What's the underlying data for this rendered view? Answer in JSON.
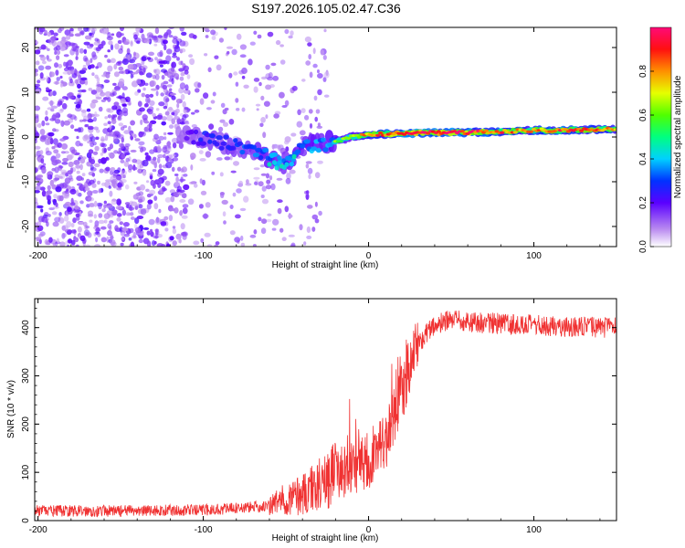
{
  "title": "S197.2026.105.02.47.C36",
  "chart_data": [
    {
      "type": "heatmap",
      "xlabel": "Height of straight line (km)",
      "ylabel": "Frequency (Hz)",
      "xlim": [
        -202,
        150
      ],
      "ylim": [
        -24.5,
        24.5
      ],
      "xticks": [
        -200,
        -100,
        0,
        100
      ],
      "xtick_labels": [
        "-200",
        "-100",
        "0",
        "100"
      ],
      "yticks": [
        -20,
        -10,
        0,
        10,
        20
      ],
      "ytick_labels": [
        "-20",
        "-10",
        "0",
        "10",
        "20"
      ],
      "colorbar": {
        "label": "Normalized spectral amplitude",
        "range": [
          0,
          1
        ],
        "ticks": [
          0.0,
          0.2,
          0.4,
          0.6,
          0.8
        ],
        "tick_labels": [
          "0.0",
          "0.2",
          "0.4",
          "0.6",
          "0.8"
        ]
      },
      "ridge": {
        "description": "frequency of peak spectral amplitude vs height",
        "x": [
          -110,
          -100,
          -90,
          -80,
          -70,
          -60,
          -50,
          -40,
          -30,
          -20,
          -10,
          0,
          20,
          40,
          60,
          80,
          100,
          120,
          150
        ],
        "freq": [
          0,
          -0.5,
          -1,
          -2,
          -3,
          -5,
          -6,
          -2,
          -1.5,
          -1,
          0,
          0.5,
          0.8,
          1,
          1,
          1.2,
          1.5,
          1.5,
          1.8
        ],
        "amplitude": [
          0.3,
          0.35,
          0.4,
          0.4,
          0.45,
          0.5,
          0.45,
          0.5,
          0.5,
          0.55,
          0.6,
          0.75,
          0.9,
          0.95,
          0.9,
          0.8,
          0.75,
          0.85,
          0.75
        ]
      },
      "noise": {
        "description": "diffuse low-amplitude speckle",
        "x_range": [
          -202,
          -25
        ],
        "dense_x_range": [
          -202,
          -110
        ],
        "amplitude_range": [
          0.05,
          0.2
        ]
      }
    },
    {
      "type": "line",
      "xlabel": "Height of straight line (km)",
      "ylabel": "SNR (10 * v/v)",
      "xlim": [
        -202,
        150
      ],
      "ylim": [
        0,
        460
      ],
      "xticks": [
        -200,
        -100,
        0,
        100
      ],
      "xtick_labels": [
        "-200",
        "-100",
        "0",
        "100"
      ],
      "yticks": [
        0,
        100,
        200,
        300,
        400
      ],
      "ytick_labels": [
        "0",
        "100",
        "200",
        "300",
        "400"
      ],
      "color": "#f03232",
      "series": [
        {
          "name": "SNR",
          "x": [
            -202,
            -150,
            -100,
            -60,
            -55,
            -40,
            -30,
            -20,
            -10,
            0,
            10,
            15,
            20,
            25,
            30,
            35,
            40,
            50,
            60,
            80,
            100,
            120,
            150
          ],
          "values": [
            20,
            20,
            22,
            30,
            40,
            55,
            75,
            100,
            110,
            125,
            160,
            210,
            260,
            320,
            365,
            390,
            405,
            415,
            412,
            408,
            405,
            402,
            400
          ]
        }
      ]
    }
  ]
}
